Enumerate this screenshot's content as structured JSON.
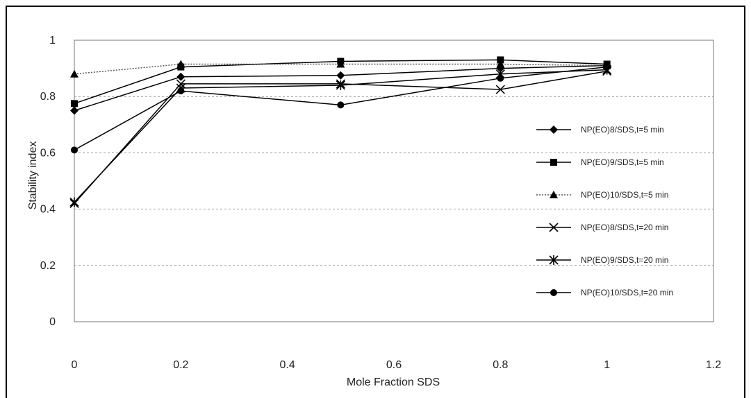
{
  "chart_data": {
    "type": "line",
    "title": "",
    "xlabel": "Mole Fraction SDS",
    "ylabel": "Stability index",
    "xlim": [
      0,
      1.2
    ],
    "ylim": [
      0,
      1
    ],
    "x_ticks": [
      "0",
      "0.2",
      "0.4",
      "0.6",
      "0.8",
      "1",
      "1.2"
    ],
    "y_ticks": [
      "0",
      "0.2",
      "0.4",
      "0.6",
      "0.8",
      "1"
    ],
    "grid": "horizontal dotted",
    "legend_position": "right",
    "series": [
      {
        "name": "NP(EO)8/SDS,t=5 min",
        "marker": "diamond",
        "line": "solid",
        "points": [
          [
            0,
            0.75
          ],
          [
            0.2,
            0.87
          ],
          [
            0.5,
            0.875
          ],
          [
            0.8,
            0.9
          ],
          [
            1,
            0.91
          ]
        ]
      },
      {
        "name": "NP(EO)9/SDS,t=5 min",
        "marker": "square",
        "line": "solid",
        "points": [
          [
            0,
            0.775
          ],
          [
            0.2,
            0.905
          ],
          [
            0.5,
            0.925
          ],
          [
            0.8,
            0.93
          ],
          [
            1,
            0.915
          ]
        ]
      },
      {
        "name": "NP(EO)10/SDS,t=5 min",
        "marker": "triangle",
        "line": "dotted",
        "points": [
          [
            0,
            0.88
          ],
          [
            0.2,
            0.915
          ],
          [
            0.5,
            0.915
          ],
          [
            0.8,
            0.915
          ],
          [
            1,
            0.91
          ]
        ]
      },
      {
        "name": "NP(EO)8/SDS,t=20 min",
        "marker": "x",
        "line": "solid",
        "points": [
          [
            0,
            0.42
          ],
          [
            0.2,
            0.845
          ],
          [
            0.5,
            0.845
          ],
          [
            0.8,
            0.825
          ],
          [
            1,
            0.89
          ]
        ]
      },
      {
        "name": "NP(EO)9/SDS,t=20 min",
        "marker": "star",
        "line": "solid",
        "points": [
          [
            0,
            0.425
          ],
          [
            0.2,
            0.83
          ],
          [
            0.5,
            0.84
          ],
          [
            0.8,
            0.88
          ],
          [
            1,
            0.895
          ]
        ]
      },
      {
        "name": "NP(EO)10/SDS,t=20 min",
        "marker": "circle",
        "line": "solid",
        "points": [
          [
            0,
            0.61
          ],
          [
            0.2,
            0.82
          ],
          [
            0.5,
            0.77
          ],
          [
            0.8,
            0.865
          ],
          [
            1,
            0.905
          ]
        ]
      }
    ]
  }
}
